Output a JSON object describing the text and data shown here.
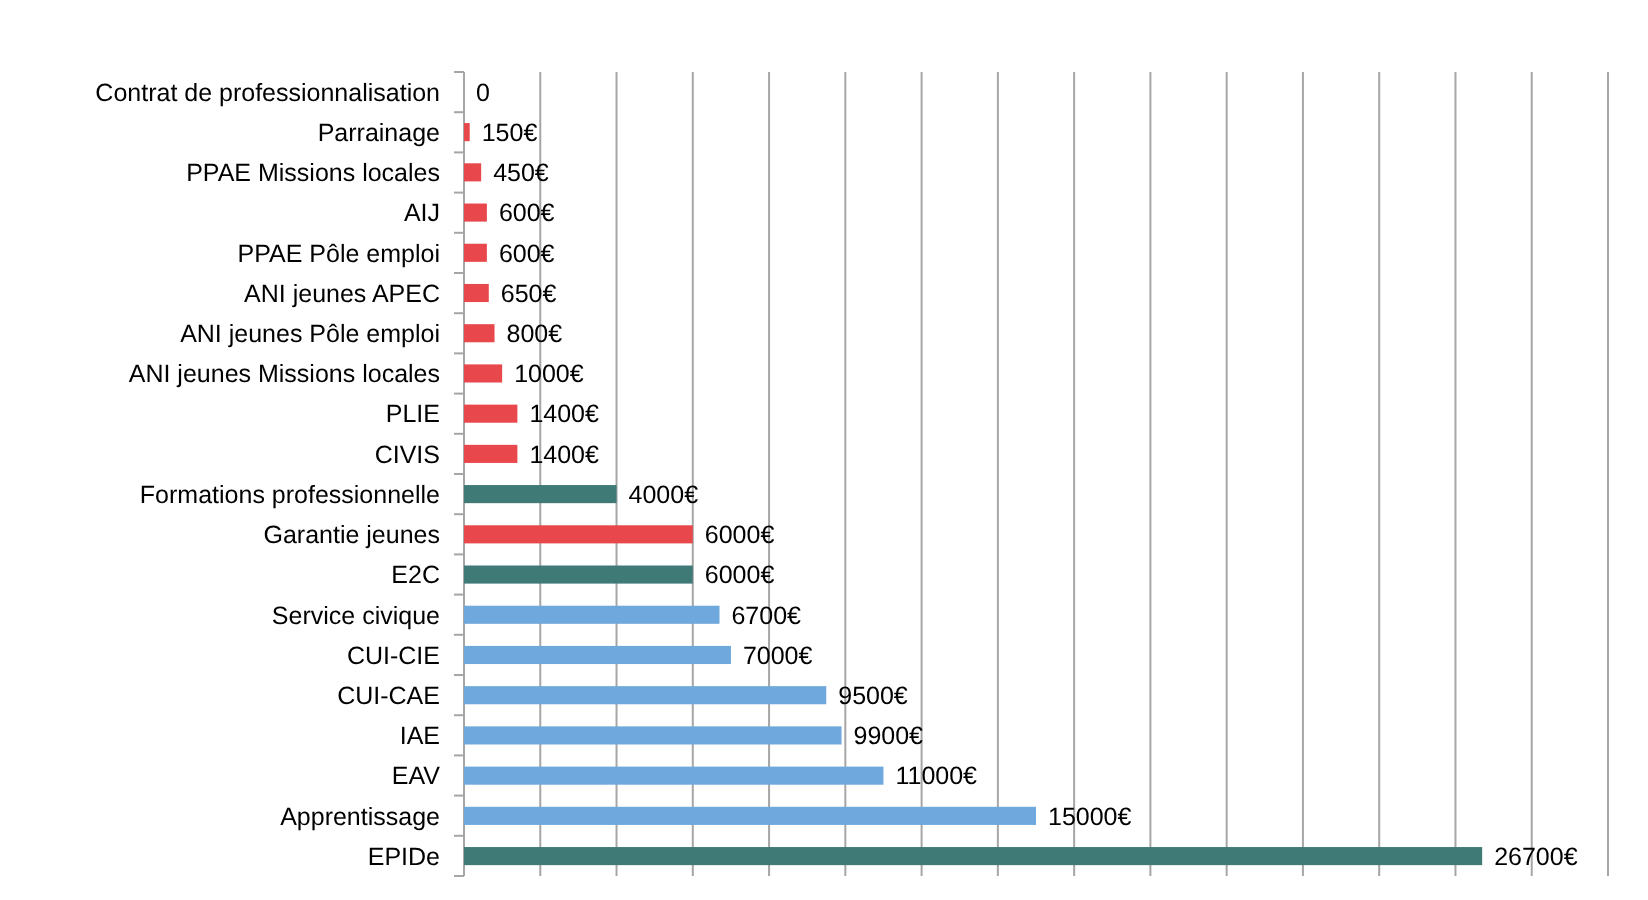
{
  "chart_data": {
    "type": "bar",
    "orientation": "horizontal",
    "categories": [
      "Contrat de professionnalisation",
      "Parrainage",
      "PPAE Missions locales",
      "AIJ",
      "PPAE Pôle emploi",
      "ANI jeunes APEC",
      "ANI jeunes Pôle emploi",
      "ANI jeunes Missions locales",
      "PLIE",
      "CIVIS",
      "Formations professionnelle",
      "Garantie jeunes",
      "E2C",
      "Service civique",
      "CUI-CIE",
      "CUI-CAE",
      "IAE",
      "EAV",
      "Apprentissage",
      "EPIDe"
    ],
    "values": [
      0,
      150,
      450,
      600,
      600,
      650,
      800,
      1000,
      1400,
      1400,
      4000,
      6000,
      6000,
      6700,
      7000,
      9500,
      9900,
      11000,
      15000,
      26700
    ],
    "colors": [
      "#e8474c",
      "#e8474c",
      "#e8474c",
      "#e8474c",
      "#e8474c",
      "#e8474c",
      "#e8474c",
      "#e8474c",
      "#e8474c",
      "#e8474c",
      "#407a77",
      "#e8474c",
      "#407a77",
      "#6ea8dc",
      "#6ea8dc",
      "#6ea8dc",
      "#6ea8dc",
      "#6ea8dc",
      "#6ea8dc",
      "#407a77"
    ],
    "value_labels": [
      "0",
      "150€",
      "450€",
      "600€",
      "600€",
      "650€",
      "800€",
      "1000€",
      "1400€",
      "1400€",
      "4000€",
      "6000€",
      "6000€",
      "6700€",
      "7000€",
      "9500€",
      "9900€",
      "11000€",
      "15000€",
      "26700€"
    ],
    "xlim": [
      0,
      30000
    ],
    "xticks": [
      {
        "value": 0,
        "label": null
      },
      {
        "value": 2000,
        "label": null
      },
      {
        "value": 4000,
        "label": null
      },
      {
        "value": 6000,
        "label": null
      },
      {
        "value": 8000,
        "label": null
      },
      {
        "value": 10000,
        "label": null
      },
      {
        "value": 12000,
        "label": null
      },
      {
        "value": 14000,
        "label": null
      },
      {
        "value": 16000,
        "label": null
      },
      {
        "value": 18000,
        "label": null
      },
      {
        "value": 20000,
        "label": null
      },
      {
        "value": 22000,
        "label": null
      },
      {
        "value": 24000,
        "label": null
      },
      {
        "value": 26000,
        "label": null
      },
      {
        "value": 28000,
        "label": null
      },
      {
        "value": 30000,
        "label": null
      }
    ],
    "grid": "x",
    "tick_labels": "y"
  }
}
